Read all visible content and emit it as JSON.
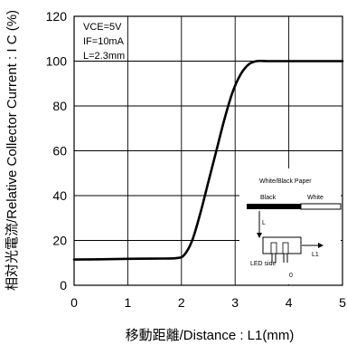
{
  "chart_data": {
    "type": "line",
    "xlabel": "移動距離/Distance : L1(mm)",
    "ylabel": "相対光電流/Relative Collector Current : I C (%)",
    "xlim": [
      0,
      5
    ],
    "ylim": [
      0,
      120
    ],
    "x_ticks": [
      "0",
      "1",
      "2",
      "3",
      "4",
      "5"
    ],
    "y_ticks": [
      "0",
      "20",
      "40",
      "60",
      "80",
      "100",
      "120"
    ],
    "grid": true,
    "conditions": [
      "VCE=5V",
      "IF=10mA",
      "L=2.3mm"
    ],
    "series": [
      {
        "x": [
          0,
          0.5,
          1.0,
          1.5,
          1.9,
          2.05,
          2.2,
          2.35,
          2.5,
          2.65,
          2.8,
          2.95,
          3.1,
          3.25,
          3.4,
          3.6,
          4.0,
          4.5,
          5.0
        ],
        "y": [
          11.5,
          11.6,
          11.8,
          11.9,
          12.1,
          13.5,
          20,
          32,
          46,
          60,
          74,
          86,
          94,
          98.5,
          100,
          100,
          100,
          100,
          100
        ]
      }
    ],
    "inset": {
      "paper_label": "White/Black Paper",
      "black_label": "Black",
      "white_label": "White",
      "led_label": "LED side",
      "l_label": "L",
      "l1_label": "L1",
      "zero_label": "0"
    }
  }
}
